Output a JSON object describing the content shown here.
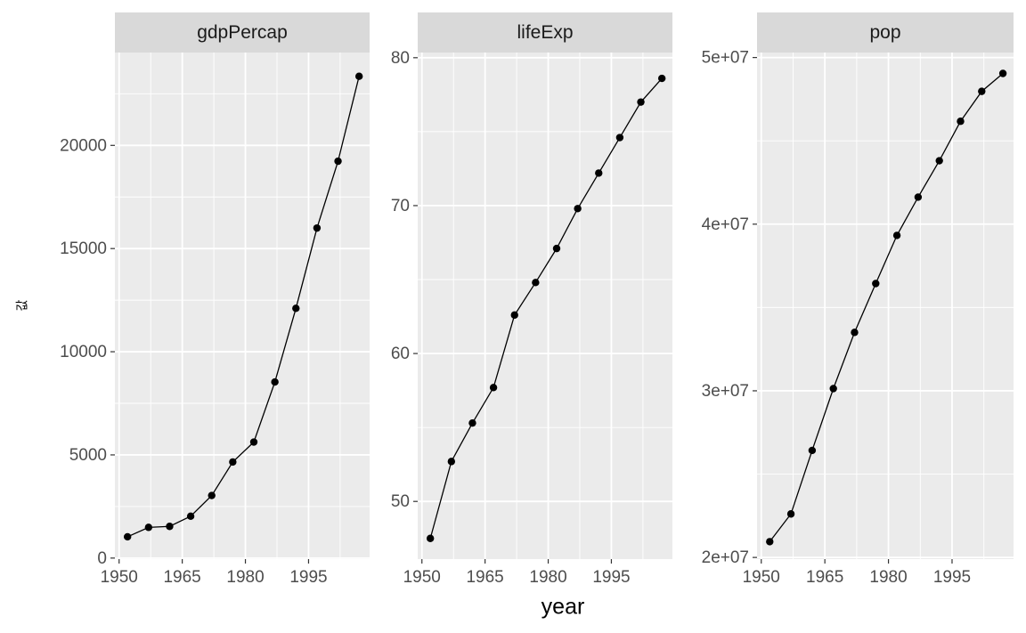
{
  "chart_data": {
    "type": "line",
    "facet_by": "variable",
    "xlabel": "year",
    "ylabel": "값",
    "x": [
      1952,
      1957,
      1962,
      1967,
      1972,
      1977,
      1982,
      1987,
      1992,
      1997,
      2002,
      2007
    ],
    "xticks": [
      1950,
      1965,
      1980,
      1995
    ],
    "xlim": [
      1949,
      2009.5
    ],
    "grid": true,
    "markers": true,
    "panels": [
      {
        "name": "gdpPercap",
        "values": [
          1031,
          1488,
          1536,
          2029,
          3031,
          4657,
          5623,
          8533,
          12104,
          15994,
          19234,
          23348
        ],
        "yticks": [
          0,
          5000,
          10000,
          15000,
          20000
        ],
        "ytick_labels": [
          "0",
          "5000",
          "10000",
          "15000",
          "20000"
        ],
        "ylim": [
          -50,
          24500
        ]
      },
      {
        "name": "lifeExp",
        "values": [
          47.5,
          52.7,
          55.3,
          57.7,
          62.6,
          64.8,
          67.1,
          69.8,
          72.2,
          74.6,
          77.0,
          78.6
        ],
        "yticks": [
          50,
          60,
          70,
          80
        ],
        "ytick_labels": [
          "50",
          "60",
          "70",
          "80"
        ],
        "ylim": [
          46.1,
          80.35
        ]
      },
      {
        "name": "pop",
        "values": [
          20947571,
          22611552,
          26420307,
          30131000,
          33505000,
          36436000,
          39326000,
          41622000,
          43805450,
          46173816,
          47969150,
          49044790
        ],
        "yticks": [
          20000000,
          30000000,
          40000000,
          50000000
        ],
        "ytick_labels": [
          "2e+07",
          "3e+07",
          "4e+07",
          "5e+07"
        ],
        "ylim": [
          19900000,
          50300000
        ]
      }
    ]
  }
}
